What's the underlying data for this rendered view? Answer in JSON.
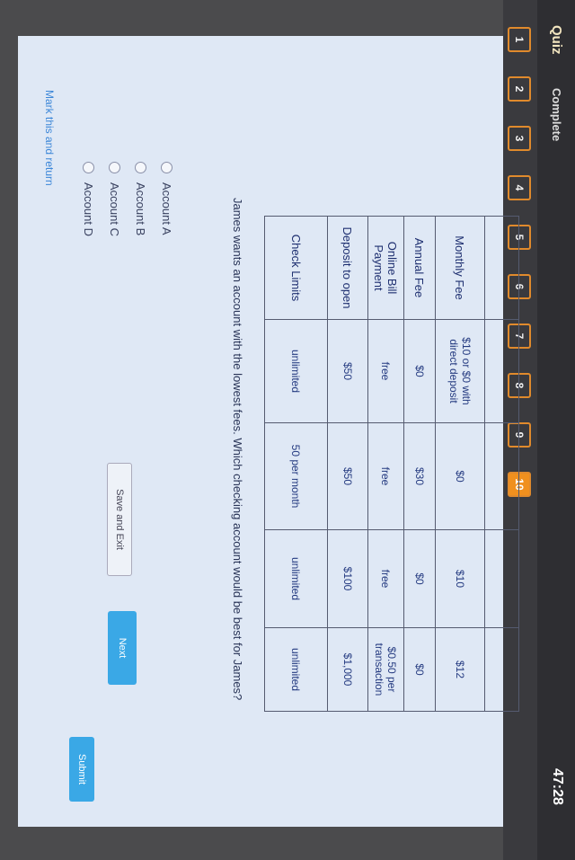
{
  "header": {
    "title": "Quiz",
    "status": "Complete",
    "timer": "47:28"
  },
  "questions": [
    "1",
    "2",
    "3",
    "4",
    "5",
    "6",
    "7",
    "8",
    "9",
    "10"
  ],
  "current_question": "10",
  "table": {
    "headers": [
      "",
      "",
      "",
      "",
      ""
    ],
    "rows": [
      {
        "label": "Monthly Fee",
        "values": [
          "$10 or $0 with direct deposit",
          "$0",
          "$10",
          "$12"
        ]
      },
      {
        "label": "Annual Fee",
        "values": [
          "$0",
          "$30",
          "$0",
          "$0"
        ]
      },
      {
        "label": "Online Bill Payment",
        "values": [
          "free",
          "free",
          "free",
          "$0.50 per transaction"
        ]
      },
      {
        "label": "Deposit to open",
        "values": [
          "$50",
          "$50",
          "$100",
          "$1,000"
        ]
      },
      {
        "label": "Check Limits",
        "values": [
          "unlimited",
          "50 per month",
          "unlimited",
          "unlimited"
        ]
      }
    ]
  },
  "question": "James wants an account with the lowest fees. Which checking account would be best for James?",
  "options": [
    "Account A",
    "Account B",
    "Account C",
    "Account D"
  ],
  "mark_link": "Mark this and return",
  "buttons": {
    "save": "Save and Exit",
    "next": "Next",
    "submit": "Submit"
  },
  "colors": {
    "accent": "#f0901e",
    "button": "#3aa8e6"
  }
}
